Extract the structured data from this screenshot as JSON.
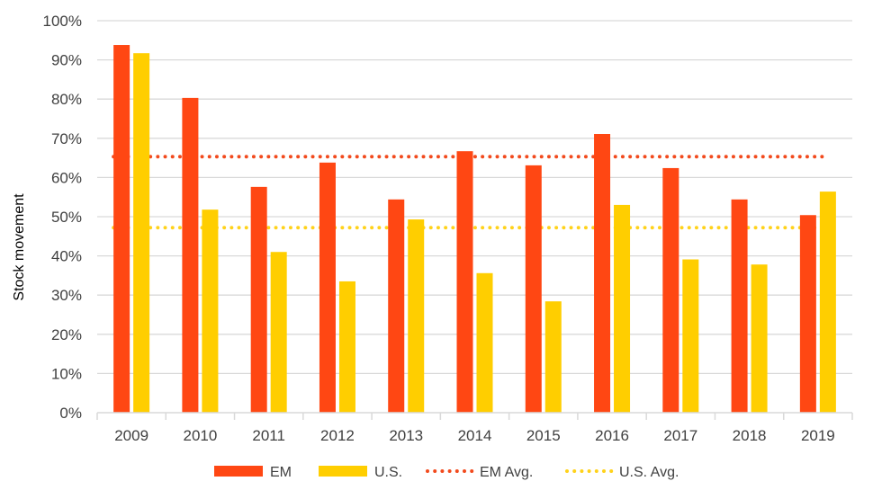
{
  "chart_data": {
    "type": "bar",
    "title": "",
    "xlabel": "",
    "ylabel": "Stock movement",
    "ylim": [
      0,
      100
    ],
    "y_ticks": [
      "0%",
      "10%",
      "20%",
      "30%",
      "40%",
      "50%",
      "60%",
      "70%",
      "80%",
      "90%",
      "100%"
    ],
    "y_tick_values": [
      0,
      10,
      20,
      30,
      40,
      50,
      60,
      70,
      80,
      90,
      100
    ],
    "categories": [
      "2009",
      "2010",
      "2011",
      "2012",
      "2013",
      "2014",
      "2015",
      "2016",
      "2017",
      "2018",
      "2019"
    ],
    "grid": true,
    "legend_position": "bottom",
    "series": [
      {
        "name": "EM",
        "kind": "bar",
        "color": "#FF4713",
        "values": [
          93.8,
          80.3,
          57.6,
          63.8,
          54.4,
          66.7,
          63.1,
          71.1,
          62.4,
          54.4,
          50.4
        ]
      },
      {
        "name": "U.S.",
        "kind": "bar",
        "color": "#FFCE00",
        "values": [
          91.7,
          51.8,
          41.0,
          33.5,
          49.3,
          35.6,
          28.4,
          53.0,
          39.1,
          37.8,
          56.4
        ]
      },
      {
        "name": "EM Avg.",
        "kind": "dotted-line",
        "color": "#F24A1D",
        "value": 65.3
      },
      {
        "name": "U.S. Avg.",
        "kind": "dotted-line",
        "color": "#FFD21A",
        "value": 47.2
      }
    ]
  }
}
